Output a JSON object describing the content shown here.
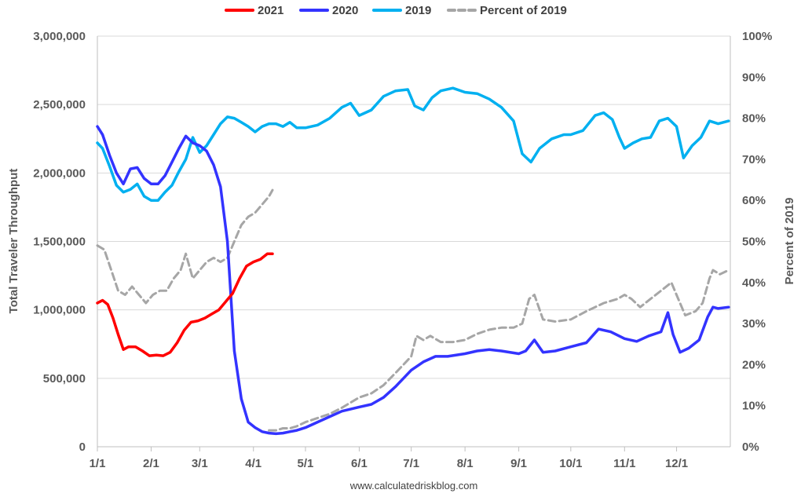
{
  "chart_data": {
    "type": "line",
    "x_ticks": [
      "1/1",
      "2/1",
      "3/1",
      "4/1",
      "5/1",
      "6/1",
      "7/1",
      "8/1",
      "9/1",
      "10/1",
      "11/1",
      "12/1"
    ],
    "y_ticks_left": [
      "0",
      "500,000",
      "1,000,000",
      "1,500,000",
      "2,000,000",
      "2,500,000",
      "3,000,000"
    ],
    "y_ticks_right": [
      "0%",
      "10%",
      "20%",
      "30%",
      "40%",
      "50%",
      "60%",
      "70%",
      "80%",
      "90%",
      "100%"
    ],
    "ylabel": "Total Traveler Throughput",
    "ylabel_right": "Percent of 2019",
    "ylim": [
      0,
      3000000
    ],
    "ylim_right": [
      0,
      1
    ],
    "xlim": [
      "1/1",
      "12/31"
    ],
    "grid": "horizontal",
    "legend_position": "top",
    "source": "www.calculatedriskblog.com",
    "series": [
      {
        "name": "2021",
        "axis": "left",
        "color": "#ff0000",
        "points": [
          [
            "1/1",
            1050000
          ],
          [
            "1/4",
            1070000
          ],
          [
            "1/7",
            1040000
          ],
          [
            "1/10",
            940000
          ],
          [
            "1/13",
            820000
          ],
          [
            "1/16",
            710000
          ],
          [
            "1/19",
            730000
          ],
          [
            "1/23",
            730000
          ],
          [
            "1/27",
            700000
          ],
          [
            "1/31",
            665000
          ],
          [
            "2/4",
            670000
          ],
          [
            "2/8",
            665000
          ],
          [
            "2/12",
            690000
          ],
          [
            "2/16",
            760000
          ],
          [
            "2/20",
            850000
          ],
          [
            "2/24",
            910000
          ],
          [
            "2/28",
            920000
          ],
          [
            "3/4",
            940000
          ],
          [
            "3/8",
            970000
          ],
          [
            "3/12",
            1000000
          ],
          [
            "3/16",
            1060000
          ],
          [
            "3/20",
            1120000
          ],
          [
            "3/24",
            1230000
          ],
          [
            "3/28",
            1320000
          ],
          [
            "4/1",
            1350000
          ],
          [
            "4/5",
            1370000
          ],
          [
            "4/9",
            1410000
          ],
          [
            "4/12",
            1410000
          ]
        ]
      },
      {
        "name": "2020",
        "axis": "left",
        "color": "#3333ff",
        "points": [
          [
            "1/1",
            2340000
          ],
          [
            "1/4",
            2280000
          ],
          [
            "1/8",
            2130000
          ],
          [
            "1/12",
            2000000
          ],
          [
            "1/16",
            1920000
          ],
          [
            "1/20",
            2030000
          ],
          [
            "1/24",
            2040000
          ],
          [
            "1/28",
            1960000
          ],
          [
            "2/1",
            1920000
          ],
          [
            "2/5",
            1920000
          ],
          [
            "2/9",
            1980000
          ],
          [
            "2/13",
            2080000
          ],
          [
            "2/17",
            2180000
          ],
          [
            "2/21",
            2270000
          ],
          [
            "2/25",
            2220000
          ],
          [
            "3/1",
            2200000
          ],
          [
            "3/5",
            2160000
          ],
          [
            "3/9",
            2060000
          ],
          [
            "3/13",
            1900000
          ],
          [
            "3/17",
            1500000
          ],
          [
            "3/21",
            700000
          ],
          [
            "3/25",
            350000
          ],
          [
            "3/29",
            180000
          ],
          [
            "4/2",
            140000
          ],
          [
            "4/6",
            110000
          ],
          [
            "4/10",
            100000
          ],
          [
            "4/14",
            95000
          ],
          [
            "4/18",
            100000
          ],
          [
            "4/22",
            110000
          ],
          [
            "4/26",
            120000
          ],
          [
            "5/1",
            140000
          ],
          [
            "5/8",
            180000
          ],
          [
            "5/15",
            220000
          ],
          [
            "5/22",
            260000
          ],
          [
            "6/1",
            290000
          ],
          [
            "6/8",
            310000
          ],
          [
            "6/15",
            360000
          ],
          [
            "6/22",
            440000
          ],
          [
            "7/1",
            560000
          ],
          [
            "7/8",
            620000
          ],
          [
            "7/15",
            660000
          ],
          [
            "7/22",
            660000
          ],
          [
            "8/1",
            680000
          ],
          [
            "8/8",
            700000
          ],
          [
            "8/15",
            710000
          ],
          [
            "8/22",
            700000
          ],
          [
            "9/1",
            680000
          ],
          [
            "9/5",
            700000
          ],
          [
            "9/10",
            780000
          ],
          [
            "9/15",
            690000
          ],
          [
            "9/22",
            700000
          ],
          [
            "10/1",
            730000
          ],
          [
            "10/10",
            760000
          ],
          [
            "10/17",
            860000
          ],
          [
            "10/24",
            840000
          ],
          [
            "11/1",
            790000
          ],
          [
            "11/8",
            770000
          ],
          [
            "11/15",
            810000
          ],
          [
            "11/22",
            840000
          ],
          [
            "11/26",
            980000
          ],
          [
            "11/29",
            820000
          ],
          [
            "12/3",
            690000
          ],
          [
            "12/8",
            720000
          ],
          [
            "12/14",
            780000
          ],
          [
            "12/19",
            950000
          ],
          [
            "12/22",
            1020000
          ],
          [
            "12/25",
            1010000
          ],
          [
            "12/31",
            1020000
          ]
        ]
      },
      {
        "name": "2019",
        "axis": "left",
        "color": "#00b0f0",
        "points": [
          [
            "1/1",
            2220000
          ],
          [
            "1/4",
            2180000
          ],
          [
            "1/8",
            2050000
          ],
          [
            "1/12",
            1910000
          ],
          [
            "1/16",
            1860000
          ],
          [
            "1/20",
            1880000
          ],
          [
            "1/24",
            1920000
          ],
          [
            "1/28",
            1830000
          ],
          [
            "2/1",
            1800000
          ],
          [
            "2/5",
            1800000
          ],
          [
            "2/9",
            1860000
          ],
          [
            "2/13",
            1910000
          ],
          [
            "2/17",
            2010000
          ],
          [
            "2/21",
            2100000
          ],
          [
            "2/25",
            2260000
          ],
          [
            "3/1",
            2150000
          ],
          [
            "3/5",
            2200000
          ],
          [
            "3/9",
            2280000
          ],
          [
            "3/13",
            2360000
          ],
          [
            "3/17",
            2410000
          ],
          [
            "3/21",
            2400000
          ],
          [
            "3/25",
            2370000
          ],
          [
            "3/29",
            2340000
          ],
          [
            "4/2",
            2300000
          ],
          [
            "4/6",
            2340000
          ],
          [
            "4/10",
            2360000
          ],
          [
            "4/14",
            2360000
          ],
          [
            "4/18",
            2340000
          ],
          [
            "4/22",
            2370000
          ],
          [
            "4/26",
            2330000
          ],
          [
            "5/1",
            2330000
          ],
          [
            "5/8",
            2350000
          ],
          [
            "5/15",
            2400000
          ],
          [
            "5/22",
            2480000
          ],
          [
            "5/27",
            2510000
          ],
          [
            "6/1",
            2420000
          ],
          [
            "6/8",
            2460000
          ],
          [
            "6/15",
            2560000
          ],
          [
            "6/22",
            2600000
          ],
          [
            "6/29",
            2610000
          ],
          [
            "7/3",
            2490000
          ],
          [
            "7/8",
            2460000
          ],
          [
            "7/13",
            2550000
          ],
          [
            "7/18",
            2600000
          ],
          [
            "7/25",
            2620000
          ],
          [
            "8/1",
            2590000
          ],
          [
            "8/8",
            2580000
          ],
          [
            "8/15",
            2540000
          ],
          [
            "8/22",
            2480000
          ],
          [
            "8/29",
            2380000
          ],
          [
            "9/3",
            2140000
          ],
          [
            "9/8",
            2080000
          ],
          [
            "9/13",
            2180000
          ],
          [
            "9/20",
            2250000
          ],
          [
            "9/27",
            2280000
          ],
          [
            "10/1",
            2280000
          ],
          [
            "10/8",
            2310000
          ],
          [
            "10/15",
            2420000
          ],
          [
            "10/20",
            2440000
          ],
          [
            "10/25",
            2390000
          ],
          [
            "10/29",
            2260000
          ],
          [
            "11/1",
            2180000
          ],
          [
            "11/6",
            2220000
          ],
          [
            "11/11",
            2250000
          ],
          [
            "11/16",
            2260000
          ],
          [
            "11/21",
            2380000
          ],
          [
            "11/26",
            2400000
          ],
          [
            "12/1",
            2340000
          ],
          [
            "12/5",
            2110000
          ],
          [
            "12/10",
            2200000
          ],
          [
            "12/15",
            2260000
          ],
          [
            "12/20",
            2380000
          ],
          [
            "12/25",
            2360000
          ],
          [
            "12/31",
            2380000
          ]
        ]
      },
      {
        "name": "Percent of 2019",
        "axis": "right",
        "color": "#a6a6a6",
        "dashed": true,
        "points": [
          [
            "1/1",
            0.49
          ],
          [
            "1/5",
            0.48
          ],
          [
            "1/9",
            0.43
          ],
          [
            "1/13",
            0.38
          ],
          [
            "1/17",
            0.37
          ],
          [
            "1/21",
            0.39
          ],
          [
            "1/25",
            0.37
          ],
          [
            "1/29",
            0.35
          ],
          [
            "2/2",
            0.37
          ],
          [
            "2/6",
            0.38
          ],
          [
            "2/10",
            0.38
          ],
          [
            "2/14",
            0.41
          ],
          [
            "2/18",
            0.43
          ],
          [
            "2/21",
            0.47
          ],
          [
            "2/25",
            0.41
          ],
          [
            "3/1",
            0.43
          ],
          [
            "3/5",
            0.45
          ],
          [
            "3/9",
            0.46
          ],
          [
            "3/13",
            0.45
          ],
          [
            "3/17",
            0.46
          ],
          [
            "3/21",
            0.5
          ],
          [
            "3/25",
            0.54
          ],
          [
            "3/29",
            0.56
          ],
          [
            "4/2",
            0.57
          ],
          [
            "4/6",
            0.59
          ],
          [
            "4/10",
            0.61
          ],
          [
            "4/12",
            0.625
          ]
        ]
      },
      {
        "name": "Percent of 2019 (2020)",
        "axis": "right",
        "color": "#a6a6a6",
        "dashed": true,
        "hide_legend": true,
        "points": [
          [
            "4/10",
            0.04
          ],
          [
            "4/14",
            0.04
          ],
          [
            "4/18",
            0.045
          ],
          [
            "4/22",
            0.045
          ],
          [
            "4/26",
            0.05
          ],
          [
            "5/1",
            0.06
          ],
          [
            "5/8",
            0.07
          ],
          [
            "5/15",
            0.08
          ],
          [
            "5/22",
            0.095
          ],
          [
            "6/1",
            0.12
          ],
          [
            "6/8",
            0.13
          ],
          [
            "6/15",
            0.15
          ],
          [
            "6/22",
            0.18
          ],
          [
            "7/1",
            0.22
          ],
          [
            "7/4",
            0.27
          ],
          [
            "7/8",
            0.26
          ],
          [
            "7/12",
            0.27
          ],
          [
            "7/18",
            0.255
          ],
          [
            "7/25",
            0.255
          ],
          [
            "8/1",
            0.26
          ],
          [
            "8/8",
            0.275
          ],
          [
            "8/15",
            0.285
          ],
          [
            "8/22",
            0.29
          ],
          [
            "8/29",
            0.29
          ],
          [
            "9/3",
            0.3
          ],
          [
            "9/7",
            0.36
          ],
          [
            "9/10",
            0.37
          ],
          [
            "9/15",
            0.31
          ],
          [
            "9/22",
            0.305
          ],
          [
            "10/1",
            0.31
          ],
          [
            "10/10",
            0.33
          ],
          [
            "10/20",
            0.35
          ],
          [
            "10/28",
            0.36
          ],
          [
            "11/1",
            0.37
          ],
          [
            "11/5",
            0.36
          ],
          [
            "11/10",
            0.34
          ],
          [
            "11/16",
            0.36
          ],
          [
            "11/22",
            0.38
          ],
          [
            "11/28",
            0.4
          ],
          [
            "12/1",
            0.37
          ],
          [
            "12/6",
            0.32
          ],
          [
            "12/12",
            0.33
          ],
          [
            "12/16",
            0.35
          ],
          [
            "12/20",
            0.41
          ],
          [
            "12/22",
            0.43
          ],
          [
            "12/26",
            0.42
          ],
          [
            "12/31",
            0.43
          ]
        ]
      }
    ]
  }
}
